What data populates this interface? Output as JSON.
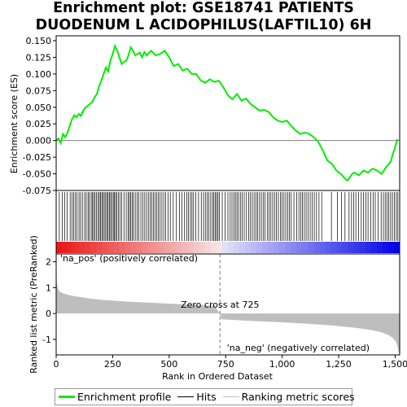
{
  "title_lines": [
    "Enrichment plot: GSE18741 PATIENTS",
    "DUODENUM L ACIDOPHILUS(LAFTIL10) 6H"
  ],
  "chart_data": [
    {
      "type": "line",
      "name": "enrichment-profile",
      "ylabel": "Enrichment score (ES)",
      "xlim": [
        0,
        1520
      ],
      "ylim": [
        -0.075,
        0.15
      ],
      "yticks": [
        "0.150",
        "0.125",
        "0.100",
        "0.075",
        "0.050",
        "0.025",
        "0.000",
        "-0.025",
        "-0.050",
        "-0.075"
      ],
      "ytick_values": [
        0.15,
        0.125,
        0.1,
        0.075,
        0.05,
        0.025,
        0.0,
        -0.025,
        -0.05,
        -0.075
      ],
      "color": "#00ee00",
      "x": [
        0,
        10,
        20,
        30,
        40,
        50,
        60,
        70,
        80,
        90,
        100,
        110,
        120,
        130,
        140,
        150,
        160,
        170,
        180,
        190,
        200,
        210,
        220,
        230,
        240,
        250,
        260,
        270,
        280,
        290,
        300,
        310,
        320,
        330,
        340,
        350,
        360,
        370,
        380,
        390,
        400,
        420,
        440,
        460,
        480,
        500,
        520,
        540,
        560,
        580,
        600,
        620,
        640,
        660,
        680,
        700,
        720,
        740,
        760,
        780,
        800,
        820,
        840,
        860,
        880,
        900,
        920,
        940,
        960,
        980,
        1000,
        1020,
        1040,
        1060,
        1080,
        1100,
        1120,
        1140,
        1160,
        1180,
        1200,
        1220,
        1240,
        1260,
        1280,
        1290,
        1300,
        1310,
        1320,
        1340,
        1360,
        1380,
        1400,
        1420,
        1440,
        1460,
        1480,
        1490,
        1500,
        1510
      ],
      "y": [
        0.0,
        0.003,
        -0.004,
        0.01,
        0.005,
        0.012,
        0.022,
        0.032,
        0.038,
        0.035,
        0.04,
        0.037,
        0.045,
        0.05,
        0.052,
        0.055,
        0.058,
        0.065,
        0.07,
        0.082,
        0.09,
        0.1,
        0.11,
        0.104,
        0.12,
        0.13,
        0.142,
        0.135,
        0.125,
        0.115,
        0.118,
        0.12,
        0.128,
        0.14,
        0.135,
        0.128,
        0.13,
        0.132,
        0.125,
        0.133,
        0.128,
        0.135,
        0.128,
        0.13,
        0.135,
        0.125,
        0.112,
        0.115,
        0.105,
        0.108,
        0.1,
        0.1,
        0.09,
        0.087,
        0.092,
        0.088,
        0.09,
        0.08,
        0.068,
        0.062,
        0.07,
        0.06,
        0.063,
        0.055,
        0.05,
        0.045,
        0.046,
        0.043,
        0.035,
        0.03,
        0.028,
        0.03,
        0.022,
        0.015,
        0.01,
        0.012,
        0.01,
        0.005,
        -0.002,
        -0.015,
        -0.03,
        -0.035,
        -0.045,
        -0.05,
        -0.058,
        -0.06,
        -0.055,
        -0.05,
        -0.048,
        -0.052,
        -0.045,
        -0.048,
        -0.042,
        -0.045,
        -0.05,
        -0.04,
        -0.032,
        -0.02,
        -0.01,
        0.002
      ]
    },
    {
      "type": "heatmap",
      "name": "hits-and-ranking-bar",
      "xlim": [
        0,
        1520
      ],
      "hits": [
        14,
        27,
        38,
        48,
        62,
        70,
        78,
        84,
        92,
        101,
        108,
        116,
        126,
        133,
        141,
        147,
        155,
        161,
        166,
        172,
        178,
        185,
        191,
        196,
        202,
        207,
        213,
        219,
        225,
        230,
        236,
        241,
        247,
        253,
        258,
        263,
        268,
        275,
        282,
        290,
        300,
        310,
        318,
        324,
        330,
        336,
        342,
        350,
        358,
        366,
        375,
        383,
        392,
        400,
        408,
        416,
        423,
        431,
        437,
        445,
        452,
        460,
        468,
        476,
        485,
        495,
        505,
        518,
        532,
        545,
        557,
        568,
        578,
        586,
        594,
        601,
        608,
        618,
        630,
        642,
        652,
        660,
        668,
        676,
        684,
        692,
        698,
        704,
        710,
        716,
        722,
        735,
        748,
        760,
        770,
        778,
        786,
        793,
        800,
        807,
        815,
        823,
        832,
        842,
        852,
        860,
        868,
        876,
        884,
        892,
        900,
        908,
        916,
        924,
        934,
        942,
        950,
        958,
        966,
        974,
        983,
        992,
        1000,
        1008,
        1016,
        1024,
        1032,
        1040,
        1052,
        1064,
        1074,
        1082,
        1090,
        1098,
        1106,
        1115,
        1124,
        1133,
        1142,
        1152,
        1163,
        1175,
        1218,
        1244,
        1262,
        1278,
        1296,
        1307,
        1316,
        1326,
        1338,
        1350,
        1360,
        1370,
        1380,
        1392,
        1403,
        1412,
        1425,
        1438,
        1448,
        1456,
        1464,
        1472,
        1480,
        1488,
        1497,
        1505,
        1512
      ]
    },
    {
      "type": "area",
      "name": "ranked-list-metric",
      "xlabel": "Rank in Ordered Dataset",
      "ylabel": "Ranked list metric (PreRanked)",
      "xlim": [
        0,
        1520
      ],
      "ylim": [
        -1.6,
        2.3
      ],
      "xticks": [
        "0",
        "250",
        "500",
        "750",
        "1,000",
        "1,250",
        "1,500"
      ],
      "xtick_values": [
        0,
        250,
        500,
        750,
        1000,
        1250,
        1500
      ],
      "yticks": [
        "2",
        "1",
        "0",
        "-1"
      ],
      "ytick_values": [
        2,
        1,
        0,
        -1
      ],
      "x": [
        0,
        3,
        8,
        15,
        30,
        60,
        100,
        150,
        200,
        300,
        400,
        500,
        600,
        700,
        725,
        730,
        800,
        900,
        1000,
        1100,
        1200,
        1300,
        1350,
        1400,
        1440,
        1470,
        1490,
        1500,
        1508,
        1512,
        1516,
        1520
      ],
      "y": [
        2.1,
        1.2,
        0.95,
        0.85,
        0.78,
        0.7,
        0.64,
        0.58,
        0.53,
        0.47,
        0.42,
        0.38,
        0.34,
        0.3,
        0.0,
        -0.22,
        -0.26,
        -0.3,
        -0.34,
        -0.39,
        -0.45,
        -0.53,
        -0.58,
        -0.65,
        -0.73,
        -0.83,
        -0.95,
        -1.05,
        -1.2,
        -1.35,
        -1.5,
        -1.6
      ],
      "color": "#bebebe",
      "zero_cross_label": "Zero cross at 725",
      "zero_cross_x": 725,
      "pos_label": "'na_pos' (positively correlated)",
      "neg_label": "'na_neg' (negatively correlated)",
      "pos_color": "#cc0000",
      "neg_color": "#0000cc"
    }
  ],
  "legend": [
    {
      "label": "Enrichment profile",
      "color": "#00ee00",
      "style": "thick"
    },
    {
      "label": "Hits",
      "color": "#000000",
      "style": "thin"
    },
    {
      "label": "Ranking metric scores",
      "color": "#bebebe",
      "style": "thin"
    }
  ]
}
